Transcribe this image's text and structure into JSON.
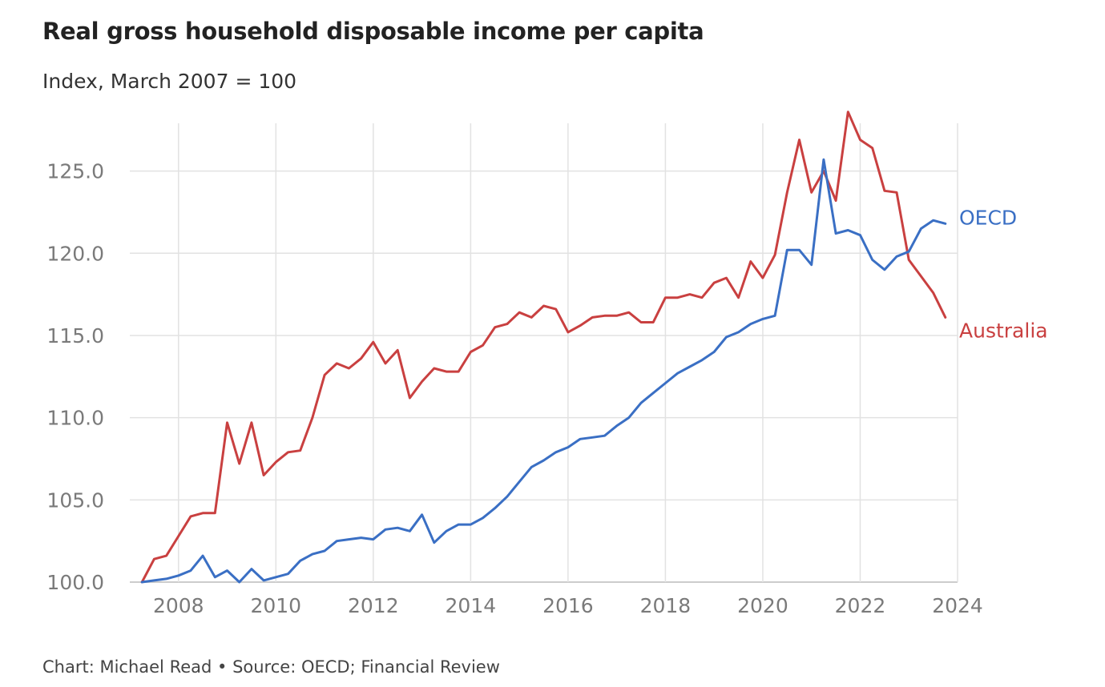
{
  "title": "Real gross household disposable income per capita",
  "subtitle": "Index, March 2007 = 100",
  "footer": "Chart: Michael Read • Source: OECD; Financial Review",
  "colors": {
    "australia": "#c94040",
    "oecd": "#3a6fc4",
    "grid": "#e2e2e2",
    "baseline": "#cccccc"
  },
  "chart_data": {
    "type": "line",
    "title": "Real gross household disposable income per capita",
    "subtitle": "Index, March 2007 = 100",
    "xlim": [
      2007,
      2024
    ],
    "ylim": [
      100,
      128
    ],
    "xticks": [
      2008,
      2010,
      2012,
      2014,
      2016,
      2018,
      2020,
      2022,
      2024
    ],
    "yticks": [
      100.0,
      105.0,
      110.0,
      115.0,
      120.0,
      125.0
    ],
    "grid": true,
    "x_start": 2007.25,
    "x_step": 0.25,
    "series": [
      {
        "name": "Australia",
        "color": "#c94040",
        "values": [
          100.0,
          101.4,
          101.6,
          102.8,
          104.0,
          104.2,
          104.2,
          109.7,
          107.2,
          109.7,
          106.5,
          107.3,
          107.9,
          108.0,
          110.0,
          112.6,
          113.3,
          113.0,
          113.6,
          114.6,
          113.3,
          114.1,
          111.2,
          112.2,
          113.0,
          112.8,
          112.8,
          114.0,
          114.4,
          115.5,
          115.7,
          116.4,
          116.1,
          116.8,
          116.6,
          115.2,
          115.6,
          116.1,
          116.2,
          116.2,
          116.4,
          115.8,
          115.8,
          117.3,
          117.3,
          117.5,
          117.3,
          118.2,
          118.5,
          117.3,
          119.5,
          118.5,
          119.9,
          123.7,
          126.9,
          123.7,
          125.0,
          123.2,
          128.6,
          126.9,
          126.4,
          123.8,
          123.7,
          119.6,
          118.6,
          117.6,
          116.1
        ]
      },
      {
        "name": "OECD",
        "color": "#3a6fc4",
        "values": [
          100.0,
          100.1,
          100.2,
          100.4,
          100.7,
          101.6,
          100.3,
          100.7,
          100.0,
          100.8,
          100.1,
          100.3,
          100.5,
          101.3,
          101.7,
          101.9,
          102.5,
          102.6,
          102.7,
          102.6,
          103.2,
          103.3,
          103.1,
          104.1,
          102.4,
          103.1,
          103.5,
          103.5,
          103.9,
          104.5,
          105.2,
          106.1,
          107.0,
          107.4,
          107.9,
          108.2,
          108.7,
          108.8,
          108.9,
          109.5,
          110.0,
          110.9,
          111.5,
          112.1,
          112.7,
          113.1,
          113.5,
          114.0,
          114.9,
          115.2,
          115.7,
          116.0,
          116.2,
          120.2,
          120.2,
          119.3,
          125.7,
          121.2,
          121.4,
          121.1,
          119.6,
          119.0,
          119.8,
          120.1,
          121.5,
          122.0,
          121.8
        ]
      }
    ]
  }
}
